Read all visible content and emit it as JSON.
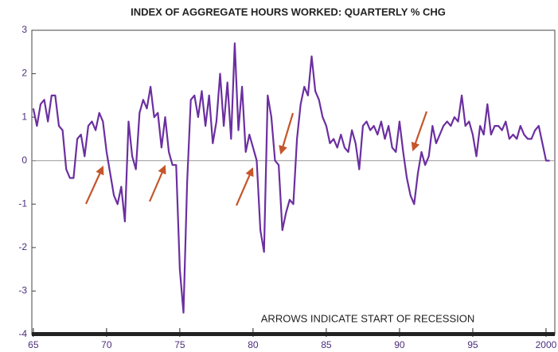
{
  "chart_data": {
    "type": "line",
    "title": "INDEX OF AGGREGATE HOURS WORKED: QUARTERLY % CHG",
    "annotation": "ARROWS INDICATE START OF RECESSION",
    "x": [
      1965,
      1965.25,
      1965.5,
      1965.75,
      1966,
      1966.25,
      1966.5,
      1966.75,
      1967,
      1967.25,
      1967.5,
      1967.75,
      1968,
      1968.25,
      1968.5,
      1968.75,
      1969,
      1969.25,
      1969.5,
      1969.75,
      1970,
      1970.25,
      1970.5,
      1970.75,
      1971,
      1971.25,
      1971.5,
      1971.75,
      1972,
      1972.25,
      1972.5,
      1972.75,
      1973,
      1973.25,
      1973.5,
      1973.75,
      1974,
      1974.25,
      1974.5,
      1974.75,
      1975,
      1975.25,
      1975.5,
      1975.75,
      1976,
      1976.25,
      1976.5,
      1976.75,
      1977,
      1977.25,
      1977.5,
      1977.75,
      1978,
      1978.25,
      1978.5,
      1978.75,
      1979,
      1979.25,
      1979.5,
      1979.75,
      1980,
      1980.25,
      1980.5,
      1980.75,
      1981,
      1981.25,
      1981.5,
      1981.75,
      1982,
      1982.25,
      1982.5,
      1982.75,
      1983,
      1983.25,
      1983.5,
      1983.75,
      1984,
      1984.25,
      1984.5,
      1984.75,
      1985,
      1985.25,
      1985.5,
      1985.75,
      1986,
      1986.25,
      1986.5,
      1986.75,
      1987,
      1987.25,
      1987.5,
      1987.75,
      1988,
      1988.25,
      1988.5,
      1988.75,
      1989,
      1989.25,
      1989.5,
      1989.75,
      1990,
      1990.25,
      1990.5,
      1990.75,
      1991,
      1991.25,
      1991.5,
      1991.75,
      1992,
      1992.25,
      1992.5,
      1992.75,
      1993,
      1993.25,
      1993.5,
      1993.75,
      1994,
      1994.25,
      1994.5,
      1994.75,
      1995,
      1995.25,
      1995.5,
      1995.75,
      1996,
      1996.25,
      1996.5,
      1996.75,
      1997,
      1997.25,
      1997.5,
      1997.75,
      1998,
      1998.25,
      1998.5,
      1998.75,
      1999,
      1999.25,
      1999.5,
      1999.75,
      2000,
      2000.25
    ],
    "values": [
      1.2,
      0.8,
      1.3,
      1.4,
      0.9,
      1.5,
      1.5,
      0.8,
      0.7,
      -0.2,
      -0.4,
      -0.4,
      0.5,
      0.6,
      0.1,
      0.8,
      0.9,
      0.7,
      1.1,
      0.9,
      0.2,
      -0.3,
      -0.8,
      -1.0,
      -0.6,
      -1.4,
      0.9,
      0.1,
      -0.2,
      1.1,
      1.4,
      1.2,
      1.7,
      1.0,
      1.1,
      0.3,
      1.0,
      0.2,
      -0.1,
      -0.1,
      -2.5,
      -3.5,
      -0.5,
      1.4,
      1.5,
      1.0,
      1.6,
      0.8,
      1.5,
      0.4,
      0.9,
      2.0,
      0.8,
      1.8,
      0.5,
      2.7,
      0.7,
      1.7,
      0.2,
      0.6,
      0.3,
      0.0,
      -1.6,
      -2.1,
      1.5,
      1.0,
      0.0,
      -0.1,
      -1.6,
      -1.2,
      -0.9,
      -1.0,
      0.5,
      1.3,
      1.7,
      1.5,
      2.4,
      1.6,
      1.4,
      1.0,
      0.8,
      0.4,
      0.5,
      0.3,
      0.6,
      0.3,
      0.2,
      0.7,
      0.4,
      -0.2,
      0.8,
      0.9,
      0.7,
      0.8,
      0.6,
      0.9,
      0.5,
      0.8,
      0.3,
      0.2,
      0.9,
      0.2,
      -0.4,
      -0.8,
      -1.0,
      -0.3,
      0.2,
      -0.1,
      0.1,
      0.8,
      0.4,
      0.6,
      0.8,
      0.9,
      0.8,
      1.0,
      0.9,
      1.5,
      0.8,
      0.9,
      0.6,
      0.1,
      0.8,
      0.6,
      1.3,
      0.6,
      0.8,
      0.8,
      0.7,
      0.9,
      0.5,
      0.6,
      0.5,
      0.8,
      0.6,
      0.5,
      0.5,
      0.7,
      0.8,
      0.4,
      0.0,
      0.0
    ],
    "color": "#6b2fa0",
    "xlim": [
      1964.9,
      2000.6
    ],
    "xticks": [
      {
        "value": 1965,
        "label": "65"
      },
      {
        "value": 1970,
        "label": "70"
      },
      {
        "value": 1975,
        "label": "75"
      },
      {
        "value": 1980,
        "label": "80"
      },
      {
        "value": 1985,
        "label": "85"
      },
      {
        "value": 1990,
        "label": "90"
      },
      {
        "value": 1995,
        "label": "95"
      },
      2000
    ],
    "ylim": [
      -4,
      3
    ],
    "yticks": [
      -4,
      -3,
      -2,
      -1,
      0,
      1,
      2,
      3
    ],
    "reference_line": 0
  }
}
